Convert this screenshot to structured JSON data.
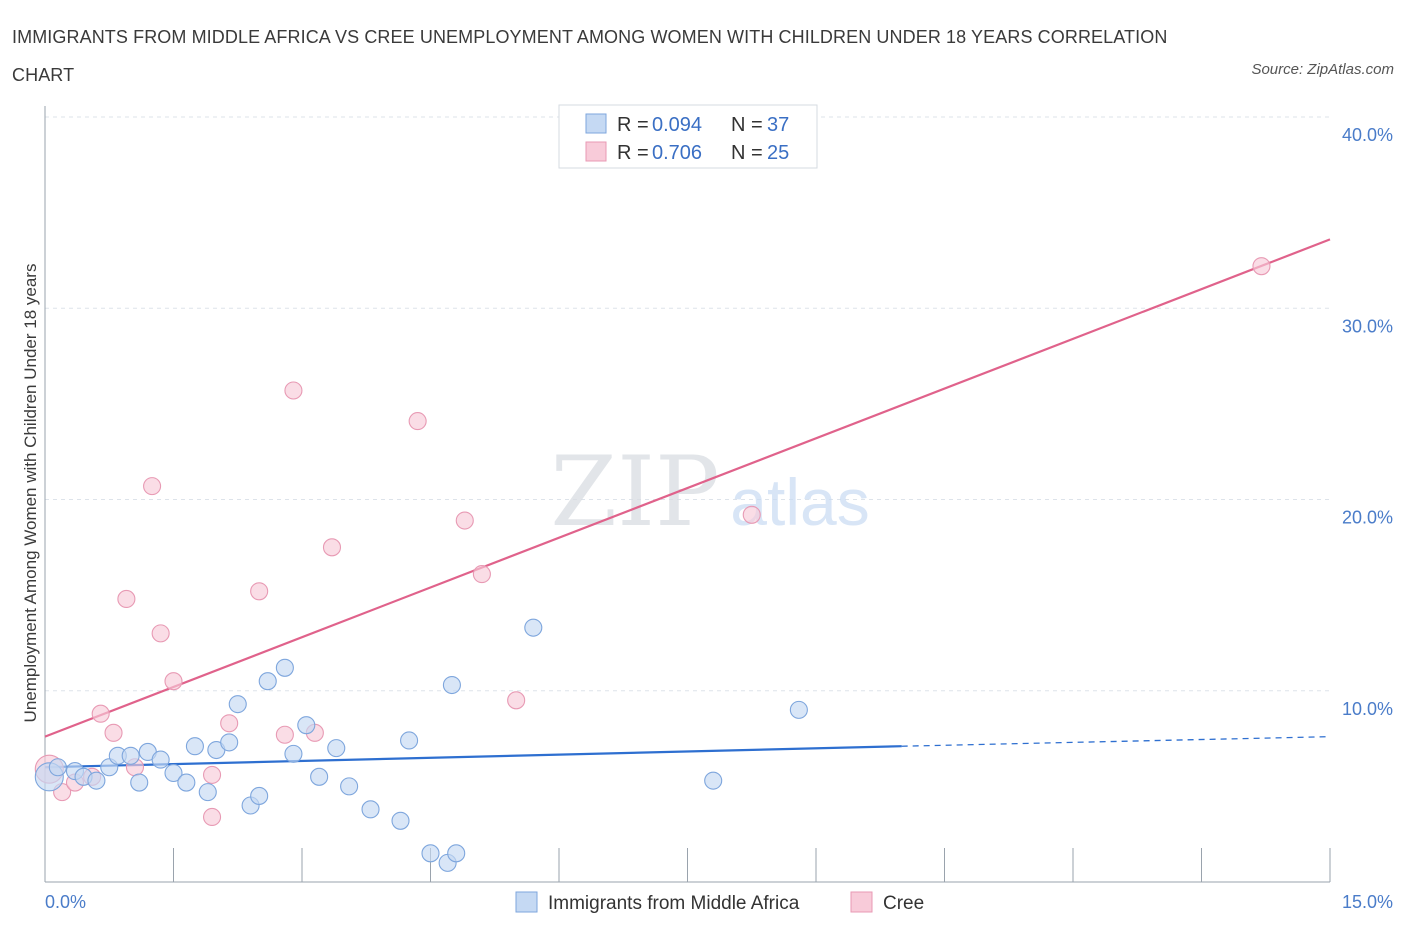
{
  "title": "IMMIGRANTS FROM MIDDLE AFRICA VS CREE UNEMPLOYMENT AMONG WOMEN WITH CHILDREN UNDER 18 YEARS CORRELATION CHART",
  "source": "Source: ZipAtlas.com",
  "watermark": {
    "zip": "ZIP",
    "atlas": "atlas"
  },
  "colors": {
    "blue_fill": "#c5d9f3",
    "blue_stroke": "#7ea6dd",
    "blue_line": "#2e6fd0",
    "pink_fill": "#f8cbd9",
    "pink_stroke": "#e89ab4",
    "pink_line": "#e0628b",
    "grid": "#dde3ea",
    "tick_text": "#4a7cc9"
  },
  "legend": {
    "rows": [
      {
        "r_label": "R = ",
        "r_value": "0.094",
        "n_label": "N = ",
        "n_value": "37",
        "series": "blue"
      },
      {
        "r_label": "R = ",
        "r_value": "0.706",
        "n_label": "N = ",
        "n_value": "25",
        "series": "pink"
      }
    ]
  },
  "bottom_legend": [
    "Immigrants from Middle Africa",
    "Cree"
  ],
  "chart_data": {
    "type": "scatter",
    "xlabel": "",
    "ylabel": "Unemployment Among Women with Children Under 18 years",
    "xlim": [
      0,
      15
    ],
    "ylim": [
      0,
      40
    ],
    "x_tick_labels": [
      {
        "value": 0,
        "label": "0.0%"
      },
      {
        "value": 15,
        "label": "15.0%"
      }
    ],
    "y_tick_labels": [
      {
        "value": 10,
        "label": "10.0%"
      },
      {
        "value": 20,
        "label": "20.0%"
      },
      {
        "value": 30,
        "label": "30.0%"
      },
      {
        "value": 40,
        "label": "40.0%"
      }
    ],
    "series": [
      {
        "name": "Immigrants from Middle Africa",
        "color": "blue",
        "trend": {
          "x0": 0,
          "y0": 6.0,
          "x1": 10.0,
          "y1": 7.1,
          "x_dash_end": 15,
          "y_dash_end": 7.6
        },
        "points": [
          [
            0.05,
            5.5
          ],
          [
            0.15,
            6.0
          ],
          [
            0.35,
            5.8
          ],
          [
            0.45,
            5.5
          ],
          [
            0.6,
            5.3
          ],
          [
            0.75,
            6.0
          ],
          [
            0.85,
            6.6
          ],
          [
            1.0,
            6.6
          ],
          [
            1.1,
            5.2
          ],
          [
            1.2,
            6.8
          ],
          [
            1.35,
            6.4
          ],
          [
            1.5,
            5.7
          ],
          [
            1.65,
            5.2
          ],
          [
            1.75,
            7.1
          ],
          [
            1.9,
            4.7
          ],
          [
            2.0,
            6.9
          ],
          [
            2.15,
            7.3
          ],
          [
            2.25,
            9.3
          ],
          [
            2.4,
            4.0
          ],
          [
            2.5,
            4.5
          ],
          [
            2.6,
            10.5
          ],
          [
            2.8,
            11.2
          ],
          [
            2.9,
            6.7
          ],
          [
            3.05,
            8.2
          ],
          [
            3.2,
            5.5
          ],
          [
            3.4,
            7.0
          ],
          [
            3.55,
            5.0
          ],
          [
            3.8,
            3.8
          ],
          [
            4.15,
            3.2
          ],
          [
            4.25,
            7.4
          ],
          [
            4.5,
            1.5
          ],
          [
            4.75,
            10.3
          ],
          [
            4.7,
            1.0
          ],
          [
            4.8,
            1.5
          ],
          [
            5.7,
            13.3
          ],
          [
            7.8,
            5.3
          ],
          [
            8.8,
            9.0
          ]
        ]
      },
      {
        "name": "Cree",
        "color": "pink",
        "trend": {
          "x0": 0,
          "y0": 7.6,
          "x1": 15,
          "y1": 33.6
        },
        "points": [
          [
            0.05,
            5.9
          ],
          [
            0.2,
            4.7
          ],
          [
            0.35,
            5.2
          ],
          [
            0.55,
            5.5
          ],
          [
            0.65,
            8.8
          ],
          [
            0.8,
            7.8
          ],
          [
            0.95,
            14.8
          ],
          [
            1.05,
            6.0
          ],
          [
            1.25,
            20.7
          ],
          [
            1.35,
            13.0
          ],
          [
            1.5,
            10.5
          ],
          [
            1.95,
            3.4
          ],
          [
            1.95,
            5.6
          ],
          [
            2.15,
            8.3
          ],
          [
            2.5,
            15.2
          ],
          [
            2.8,
            7.7
          ],
          [
            2.9,
            25.7
          ],
          [
            3.15,
            7.8
          ],
          [
            3.35,
            17.5
          ],
          [
            4.35,
            24.1
          ],
          [
            4.9,
            18.9
          ],
          [
            5.1,
            16.1
          ],
          [
            5.5,
            9.5
          ],
          [
            8.25,
            19.2
          ],
          [
            14.2,
            32.2
          ]
        ]
      }
    ]
  }
}
